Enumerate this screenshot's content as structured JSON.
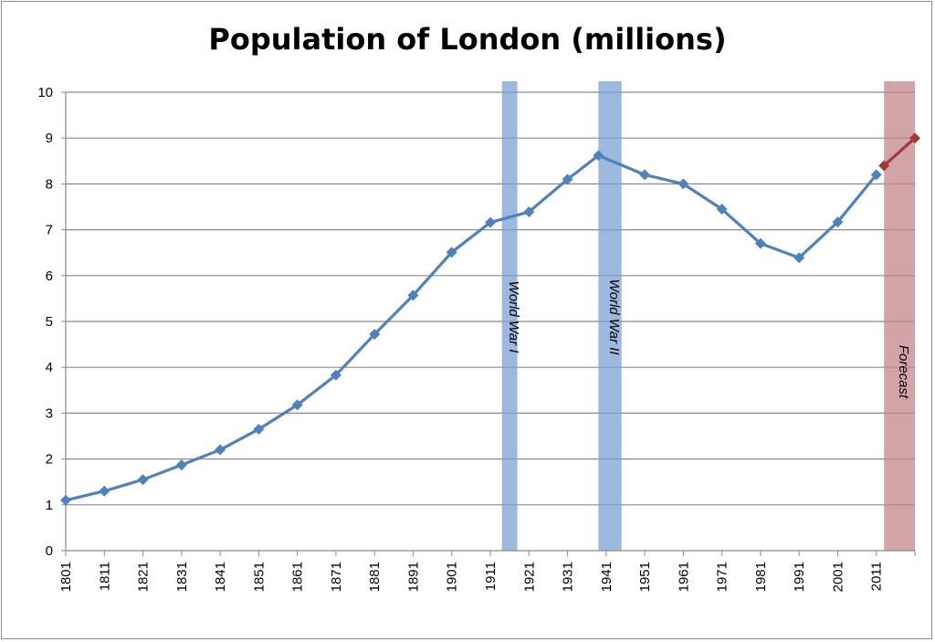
{
  "chart_data": {
    "type": "line",
    "title": "Population of London (millions)",
    "xlabel": "",
    "ylabel": "",
    "ylim": [
      0,
      10
    ],
    "y_ticks": [
      "0",
      "1",
      "2",
      "3",
      "4",
      "5",
      "6",
      "7",
      "8",
      "9",
      "10"
    ],
    "x_ticks": [
      "1801",
      "1811",
      "1821",
      "1831",
      "1841",
      "1851",
      "1861",
      "1871",
      "1881",
      "1891",
      "1901",
      "1911",
      "1921",
      "1931",
      "1941",
      "1951",
      "1961",
      "1971",
      "1981",
      "1991",
      "2001",
      "2011"
    ],
    "grid": true,
    "series": [
      {
        "color": "#4f81bd",
        "x": [
          1801,
          1811,
          1821,
          1831,
          1841,
          1851,
          1861,
          1871,
          1881,
          1891,
          1901,
          1911,
          1921,
          1931,
          1939,
          1951,
          1961,
          1971,
          1981,
          1991,
          2001,
          2011
        ],
        "values": [
          1.1,
          1.3,
          1.55,
          1.87,
          2.2,
          2.65,
          3.18,
          3.83,
          4.72,
          5.57,
          6.51,
          7.16,
          7.39,
          8.1,
          8.62,
          8.2,
          8.0,
          7.45,
          6.7,
          6.39,
          7.17,
          8.2
        ]
      },
      {
        "color": "#a0393a",
        "x": [
          2013,
          2021
        ],
        "values": [
          8.4,
          9.0
        ]
      }
    ],
    "bands": [
      {
        "label": "World War I",
        "start": 1914,
        "end": 1918,
        "color": "#7ba0d3"
      },
      {
        "label": "World War II",
        "start": 1939,
        "end": 1945,
        "color": "#7ba0d3"
      },
      {
        "label": "Forecast",
        "start": 2013,
        "end": 2021,
        "color": "#c4858a"
      }
    ]
  }
}
